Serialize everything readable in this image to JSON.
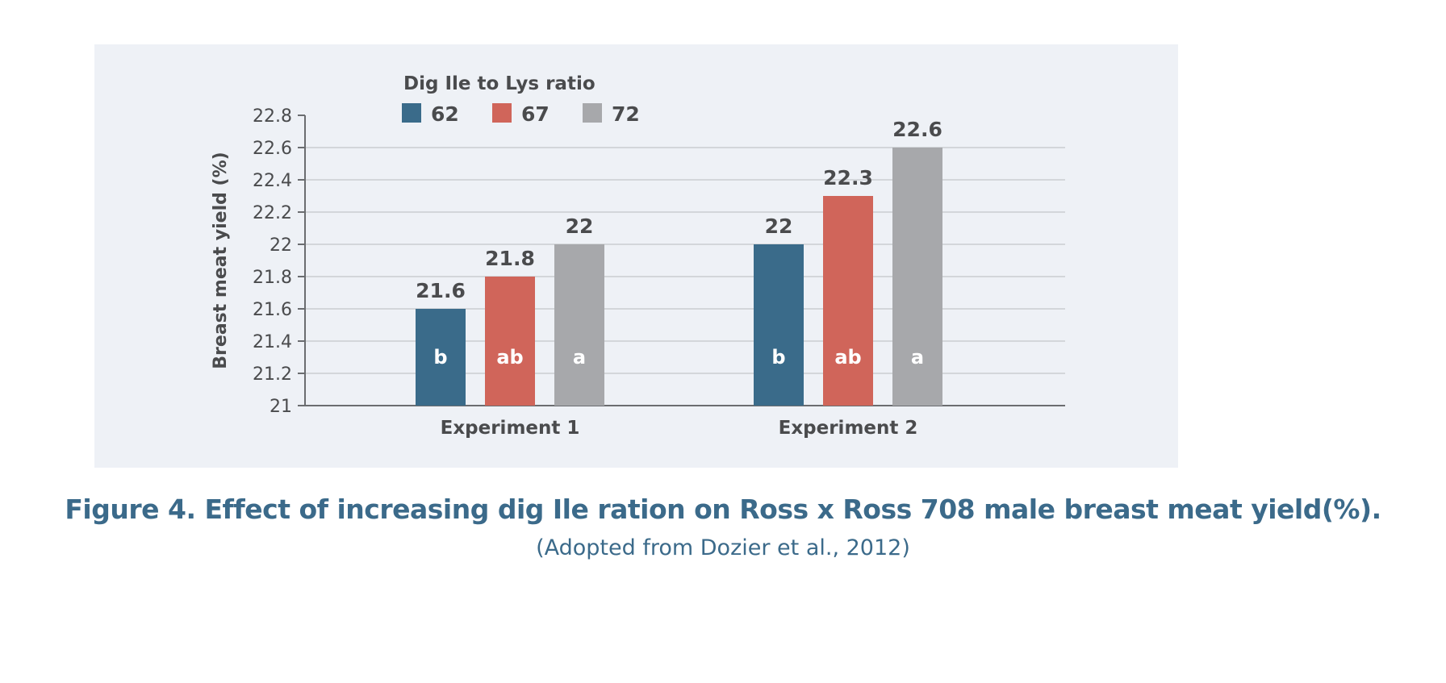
{
  "chart_data": {
    "type": "bar",
    "title": "",
    "xlabel": "",
    "ylabel": "Breast meat yield (%)",
    "ylim": [
      21,
      22.8
    ],
    "yticks": [
      "21",
      "21.2",
      "21.4",
      "21.6",
      "21.8",
      "22",
      "22.2",
      "22.4",
      "22.6",
      "22.8"
    ],
    "grid": true,
    "legend": {
      "title": "Dig Ile to Lys ratio",
      "placement": "top"
    },
    "categories": [
      "Experiment 1",
      "Experiment 2"
    ],
    "series": [
      {
        "name": "62",
        "color": "#3a6b8a",
        "values": [
          21.6,
          22
        ],
        "labels": [
          "21.6",
          "22"
        ],
        "letters": [
          "b",
          "b"
        ]
      },
      {
        "name": "67",
        "color": "#d0655a",
        "values": [
          21.8,
          22.3
        ],
        "labels": [
          "21.8",
          "22.3"
        ],
        "letters": [
          "ab",
          "ab"
        ]
      },
      {
        "name": "72",
        "color": "#a7a8ab",
        "values": [
          22,
          22.6
        ],
        "labels": [
          "22",
          "22.6"
        ],
        "letters": [
          "a",
          "a"
        ]
      }
    ]
  },
  "caption": {
    "title": "Figure 4. Effect of increasing dig Ile ration on Ross x Ross 708 male breast meat yield(%).",
    "source": "(Adopted from Dozier et al., 2012)"
  }
}
